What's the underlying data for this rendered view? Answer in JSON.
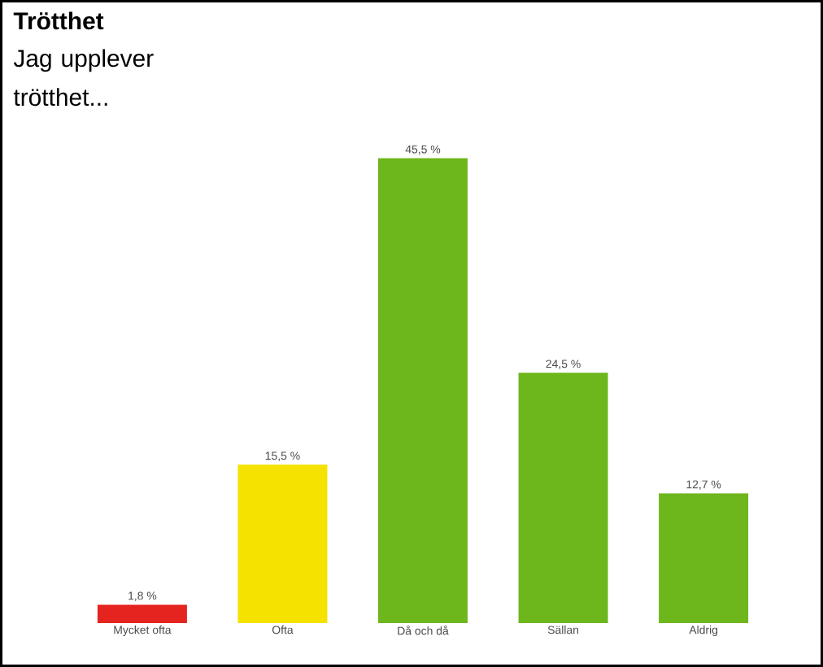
{
  "chart_data": {
    "type": "bar",
    "title": "Trötthet",
    "subtitle": "Jag upplever trötthet...",
    "categories": [
      "Mycket ofta",
      "Ofta",
      "Då och då",
      "Sällan",
      "Aldrig"
    ],
    "values": [
      1.8,
      15.5,
      45.5,
      24.5,
      12.7
    ],
    "colors": [
      "#e52420",
      "#f5e200",
      "#6db71c",
      "#6db71c",
      "#6db71c"
    ],
    "value_labels": [
      "1,8 %",
      "15,5 %",
      "45,5 %",
      "24,5 %",
      "12,7 %"
    ]
  }
}
